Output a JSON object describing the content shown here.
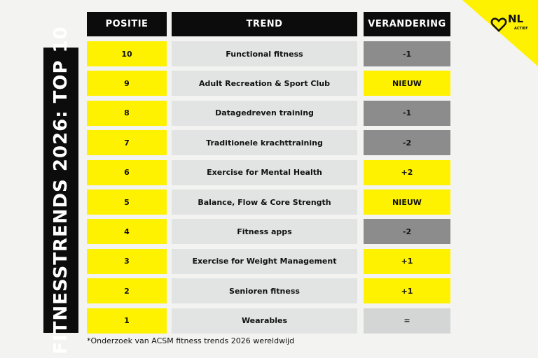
{
  "title": "FITNESSTRENDS 2026: TOP 10",
  "logo": {
    "text": "NL",
    "subtext": "ACTIEF"
  },
  "table": {
    "headers": [
      "POSITIE",
      "TREND",
      "VERANDERING"
    ],
    "rows": [
      [
        10,
        "Functional fitness",
        "-1"
      ],
      [
        9,
        "Adult Recreation & Sport Club",
        "NIEUW"
      ],
      [
        8,
        "Datagedreven training",
        "-1"
      ],
      [
        7,
        "Traditionele krachttraining",
        "-2"
      ],
      [
        6,
        "Exercise for Mental Health",
        "+2"
      ],
      [
        5,
        "Balance, Flow & Core Strength",
        "NIEUW"
      ],
      [
        4,
        "Fitness apps",
        "-2"
      ],
      [
        3,
        "Exercise for Weight Management",
        "+1"
      ],
      [
        2,
        "Senioren fitness",
        "+1"
      ],
      [
        1,
        "Wearables",
        "="
      ]
    ],
    "change_colors": [
      "#8c8c8c",
      "#fff200",
      "#8c8c8c",
      "#8c8c8c",
      "#fff200",
      "#fff200",
      "#8c8c8c",
      "#fff200",
      "#fff200",
      "#d4d6d6"
    ]
  },
  "footnote": "*Onderzoek van ACSM fitness trends 2026 wereldwijd"
}
